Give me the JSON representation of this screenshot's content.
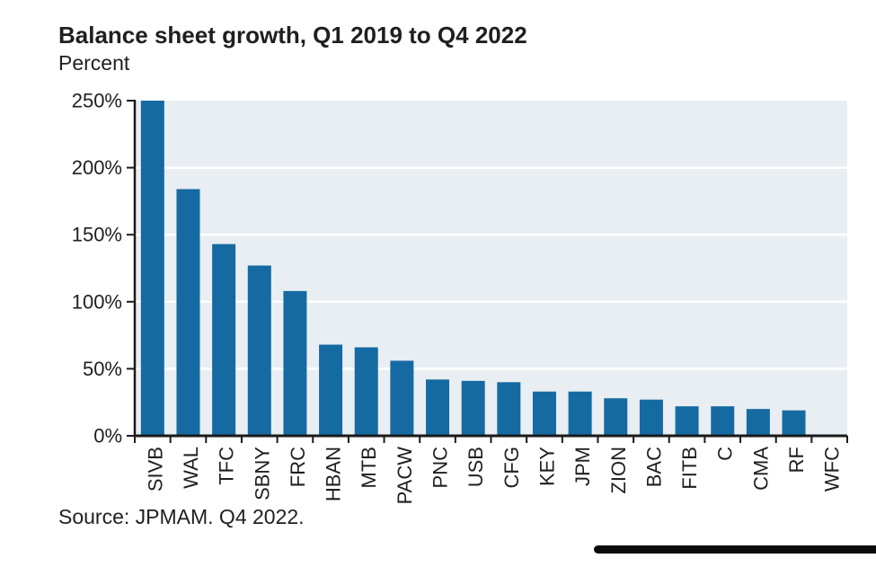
{
  "page": {
    "title": "Balance sheet growth, Q1 2019 to Q4 2022",
    "subtitle": "Percent",
    "source": "Source: JPMAM. Q4 2022."
  },
  "colors": {
    "bar": "#166aa2",
    "plot_background": "#e8eef2",
    "gridline": "#ffffff",
    "axis": "#1a1a1a",
    "text": "#1f1f1f",
    "footer_rule": "#0a0a0a"
  },
  "chart_data": {
    "type": "bar",
    "title": "Balance sheet growth, Q1 2019 to Q4 2022",
    "unit": "Percent",
    "categories": [
      "SIVB",
      "WAL",
      "TFC",
      "SBNY",
      "FRC",
      "HBAN",
      "MTB",
      "PACW",
      "PNC",
      "USB",
      "CFG",
      "KEY",
      "JPM",
      "ZION",
      "BAC",
      "FITB",
      "C",
      "CMA",
      "RF",
      "WFC"
    ],
    "values": [
      250,
      184,
      143,
      127,
      108,
      68,
      66,
      56,
      42,
      41,
      40,
      33,
      33,
      28,
      27,
      22,
      22,
      20,
      19,
      0
    ],
    "ylim": [
      0,
      250
    ],
    "ytick_step": 50,
    "ytick_labels": [
      "0%",
      "50%",
      "100%",
      "150%",
      "200%",
      "250%"
    ],
    "grid": true,
    "gridline_values": [
      50,
      100,
      150,
      200
    ],
    "x_label_rotation": 90,
    "legend_position": "none",
    "source": "Source: JPMAM. Q4 2022."
  }
}
